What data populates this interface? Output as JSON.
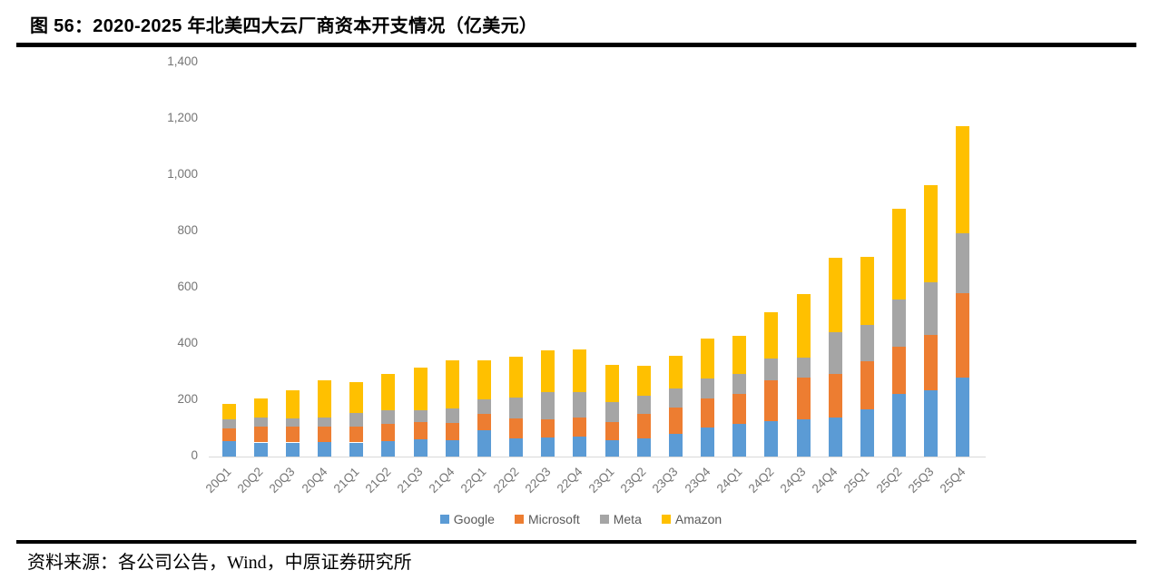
{
  "header": {
    "title": "图 56：2020-2025 年北美四大云厂商资本开支情况（亿美元）"
  },
  "footer": {
    "source": "资料来源：各公司公告，Wind，中原证券研究所"
  },
  "chart_data": {
    "type": "bar",
    "stacked": true,
    "title": "2020-2025 年北美四大云厂商资本开支情况（亿美元）",
    "xlabel": "",
    "ylabel": "",
    "ylim": [
      0,
      1400
    ],
    "grid": false,
    "legend_position": "bottom",
    "axis_color": "#d9d9d9",
    "tick_label_color": "#757575",
    "categories": [
      "20Q1",
      "20Q2",
      "20Q3",
      "20Q4",
      "21Q1",
      "21Q2",
      "21Q3",
      "21Q4",
      "22Q1",
      "22Q2",
      "22Q3",
      "22Q4",
      "23Q1",
      "23Q2",
      "23Q3",
      "23Q4",
      "24Q1",
      "24Q2",
      "24Q3",
      "24Q4",
      "25Q1",
      "25Q2",
      "25Q3",
      "25Q4"
    ],
    "yticks": [
      {
        "value": 0,
        "label": "0"
      },
      {
        "value": 200,
        "label": "200"
      },
      {
        "value": 400,
        "label": "400"
      },
      {
        "value": 600,
        "label": "600"
      },
      {
        "value": 800,
        "label": "800"
      },
      {
        "value": 1000,
        "label": "1,000"
      },
      {
        "value": 1200,
        "label": "1,200"
      },
      {
        "value": 1400,
        "label": "1,400"
      }
    ],
    "series": [
      {
        "name": "Google",
        "color": "#5B9BD5",
        "values": [
          54,
          50,
          50,
          53,
          50,
          55,
          60,
          57,
          95,
          65,
          68,
          71,
          58,
          63,
          82,
          104,
          117,
          125,
          131,
          138,
          168,
          222,
          235,
          280
        ]
      },
      {
        "name": "Microsoft",
        "color": "#ED7D31",
        "values": [
          47,
          55,
          56,
          55,
          58,
          62,
          62,
          63,
          57,
          70,
          65,
          67,
          64,
          90,
          92,
          102,
          106,
          145,
          151,
          155,
          170,
          167,
          198,
          300
        ]
      },
      {
        "name": "Meta",
        "color": "#A5A5A5",
        "values": [
          31,
          33,
          31,
          31,
          46,
          49,
          43,
          52,
          51,
          75,
          95,
          90,
          70,
          62,
          67,
          73,
          70,
          77,
          70,
          149,
          129,
          170,
          187,
          212
        ]
      },
      {
        "name": "Amazon",
        "color": "#FFC000",
        "values": [
          56,
          67,
          100,
          133,
          109,
          129,
          150,
          169,
          138,
          145,
          151,
          153,
          133,
          108,
          117,
          140,
          137,
          167,
          225,
          264,
          243,
          321,
          345,
          382
        ]
      }
    ]
  }
}
